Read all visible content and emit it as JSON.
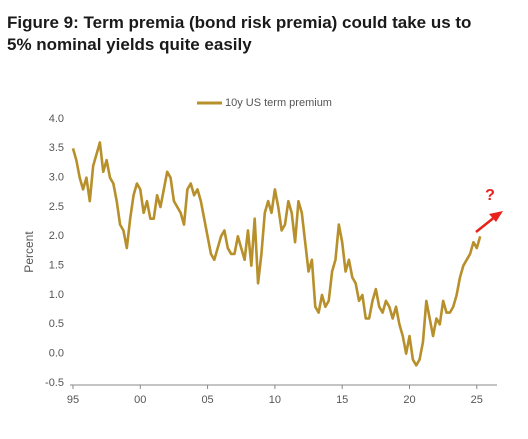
{
  "chart_data": {
    "type": "line",
    "title": [
      "Figure 9: Term premia (bond risk premia) could take us to",
      "5% nominal yields quite easily"
    ],
    "y_label": "Percent",
    "annotations": [
      "?"
    ],
    "legend": "top",
    "xlim": [
      1994.78,
      2026.5
    ],
    "xticks": [
      {
        "value": 1995,
        "label": "95"
      },
      {
        "value": 2000,
        "label": "00"
      },
      {
        "value": 2005,
        "label": "05"
      },
      {
        "value": 2010,
        "label": "10"
      },
      {
        "value": 2015,
        "label": "15"
      },
      {
        "value": 2020,
        "label": "20"
      },
      {
        "value": 2025,
        "label": "25"
      }
    ],
    "ylim": [
      -0.5,
      4.0
    ],
    "yticks": [
      {
        "value": -0.5,
        "label": "-0.5"
      },
      {
        "value": 0,
        "label": "0.0"
      },
      {
        "value": 0.5,
        "label": "0.5"
      },
      {
        "value": 1,
        "label": "1.0"
      },
      {
        "value": 1.5,
        "label": "1.5"
      },
      {
        "value": 2,
        "label": "2.0"
      },
      {
        "value": 2.5,
        "label": "2.5"
      },
      {
        "value": 3,
        "label": "3.0"
      },
      {
        "value": 3.5,
        "label": "3.5"
      },
      {
        "value": 4,
        "label": "4.0"
      }
    ],
    "x": [
      1995,
      1995.25,
      1995.5,
      1995.75,
      1996,
      1996.25,
      1996.5,
      1996.75,
      1997,
      1997.25,
      1997.5,
      1997.75,
      1998,
      1998.25,
      1998.5,
      1998.75,
      1999,
      1999.25,
      1999.5,
      1999.75,
      2000,
      2000.25,
      2000.5,
      2000.75,
      2001,
      2001.25,
      2001.5,
      2001.75,
      2002,
      2002.25,
      2002.5,
      2002.75,
      2003,
      2003.25,
      2003.5,
      2003.75,
      2004,
      2004.25,
      2004.5,
      2004.75,
      2005,
      2005.25,
      2005.5,
      2005.75,
      2006,
      2006.25,
      2006.5,
      2006.75,
      2007,
      2007.25,
      2007.5,
      2007.75,
      2008,
      2008.25,
      2008.5,
      2008.75,
      2009,
      2009.25,
      2009.5,
      2009.75,
      2010,
      2010.25,
      2010.5,
      2010.75,
      2011,
      2011.25,
      2011.5,
      2011.75,
      2012,
      2012.25,
      2012.5,
      2012.75,
      2013,
      2013.25,
      2013.5,
      2013.75,
      2014,
      2014.25,
      2014.5,
      2014.75,
      2015,
      2015.25,
      2015.5,
      2015.75,
      2016,
      2016.25,
      2016.5,
      2016.75,
      2017,
      2017.25,
      2017.5,
      2017.75,
      2018,
      2018.25,
      2018.5,
      2018.75,
      2019,
      2019.25,
      2019.5,
      2019.75,
      2020,
      2020.25,
      2020.5,
      2020.75,
      2021,
      2021.25,
      2021.5,
      2021.75,
      2022,
      2022.25,
      2022.5,
      2022.75,
      2023,
      2023.25,
      2023.5,
      2023.75,
      2024,
      2024.25,
      2024.5,
      2024.75,
      2025,
      2025.25
    ],
    "series": [
      {
        "name": "10y US term premium",
        "color": "#b78f2b",
        "values": [
          3.5,
          3.3,
          3.0,
          2.8,
          3.0,
          2.6,
          3.2,
          3.4,
          3.6,
          3.1,
          3.3,
          3.0,
          2.9,
          2.6,
          2.2,
          2.1,
          1.8,
          2.3,
          2.7,
          2.9,
          2.8,
          2.4,
          2.6,
          2.3,
          2.3,
          2.7,
          2.5,
          2.8,
          3.1,
          3.0,
          2.6,
          2.5,
          2.4,
          2.2,
          2.8,
          2.9,
          2.7,
          2.8,
          2.6,
          2.3,
          2.0,
          1.7,
          1.6,
          1.8,
          2.0,
          2.1,
          1.8,
          1.7,
          1.7,
          2.0,
          1.8,
          1.6,
          2.1,
          1.5,
          2.3,
          1.2,
          1.7,
          2.4,
          2.6,
          2.4,
          2.8,
          2.5,
          2.1,
          2.2,
          2.6,
          2.4,
          1.9,
          2.6,
          2.4,
          1.9,
          1.4,
          1.6,
          0.8,
          0.7,
          1.0,
          0.8,
          0.9,
          1.4,
          1.6,
          2.2,
          1.9,
          1.4,
          1.6,
          1.3,
          1.2,
          0.9,
          1.0,
          0.6,
          0.6,
          0.9,
          1.1,
          0.8,
          0.7,
          0.9,
          0.8,
          0.6,
          0.8,
          0.5,
          0.3,
          0.0,
          0.3,
          -0.1,
          -0.2,
          -0.1,
          0.2,
          0.9,
          0.6,
          0.3,
          0.6,
          0.5,
          0.9,
          0.7,
          0.7,
          0.8,
          1.0,
          1.3,
          1.5,
          1.6,
          1.7,
          1.9,
          1.8,
          2.0
        ]
      }
    ]
  }
}
